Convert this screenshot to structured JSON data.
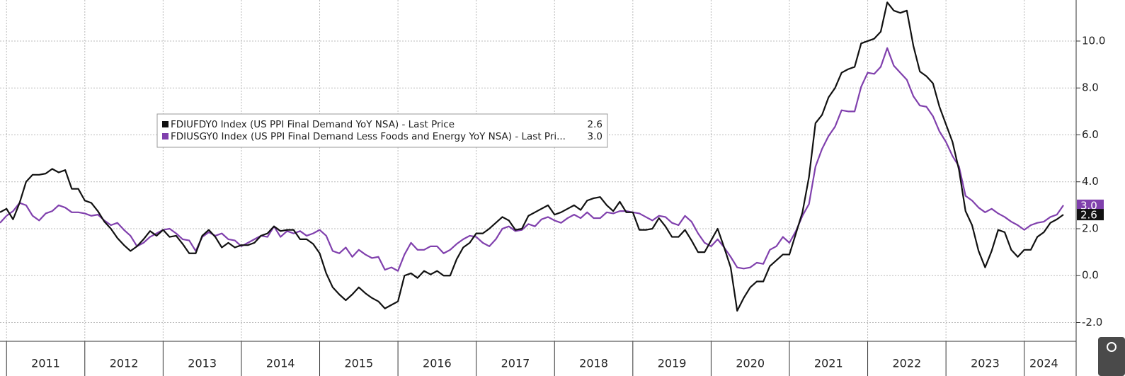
{
  "chart_data": {
    "type": "line",
    "categories": [
      null,
      null,
      null,
      null,
      null,
      null,
      null,
      "2011",
      null,
      null,
      null,
      null,
      null,
      null,
      null,
      null,
      null,
      null,
      null,
      "2012",
      null,
      null,
      null,
      null,
      null,
      null,
      null,
      null,
      null,
      null,
      null,
      "2013",
      null,
      null,
      null,
      null,
      null,
      null,
      null,
      null,
      null,
      null,
      null,
      "2014",
      null,
      null,
      null,
      null,
      null,
      null,
      null,
      null,
      null,
      null,
      null,
      "2015",
      null,
      null,
      null,
      null,
      null,
      null,
      null,
      null,
      null,
      null,
      null,
      "2016",
      null,
      null,
      null,
      null,
      null,
      null,
      null,
      null,
      null,
      null,
      null,
      "2017",
      null,
      null,
      null,
      null,
      null,
      null,
      null,
      null,
      null,
      null,
      null,
      "2018",
      null,
      null,
      null,
      null,
      null,
      null,
      null,
      null,
      null,
      null,
      null,
      "2019",
      null,
      null,
      null,
      null,
      null,
      null,
      null,
      null,
      null,
      null,
      null,
      "2020",
      null,
      null,
      null,
      null,
      null,
      null,
      null,
      null,
      null,
      null,
      null,
      "2021",
      null,
      null,
      null,
      null,
      null,
      null,
      null,
      null,
      null,
      null,
      null,
      "2022",
      null,
      null,
      null,
      null,
      null,
      null,
      null,
      null,
      null,
      null,
      null,
      "2023",
      null,
      null,
      null,
      null,
      null,
      null,
      null,
      null,
      "2024",
      null,
      null,
      null
    ],
    "series": [
      {
        "name": "FDIUFDY0 Index (US PPI Final Demand YoY NSA) - Last Price",
        "color": "#111111",
        "last_label": "2.6",
        "values": [
          2.7,
          2.85,
          2.4,
          3.1,
          4.0,
          4.3,
          4.3,
          4.35,
          4.55,
          4.4,
          4.5,
          3.7,
          3.7,
          3.2,
          3.1,
          2.75,
          2.3,
          2.0,
          1.6,
          1.3,
          1.05,
          1.25,
          1.55,
          1.9,
          1.7,
          1.95,
          1.65,
          1.7,
          1.35,
          0.95,
          0.95,
          1.7,
          1.95,
          1.65,
          1.2,
          1.4,
          1.2,
          1.3,
          1.3,
          1.4,
          1.7,
          1.8,
          2.1,
          1.9,
          1.95,
          1.95,
          1.55,
          1.55,
          1.35,
          0.95,
          0.1,
          -0.5,
          -0.8,
          -1.05,
          -0.8,
          -0.5,
          -0.75,
          -0.95,
          -1.1,
          -1.4,
          -1.25,
          -1.1,
          0.0,
          0.1,
          -0.1,
          0.2,
          0.05,
          0.2,
          0.0,
          0.0,
          0.7,
          1.2,
          1.4,
          1.8,
          1.8,
          2.0,
          2.25,
          2.5,
          2.35,
          1.95,
          2.0,
          2.55,
          2.7,
          2.85,
          3.0,
          2.6,
          2.7,
          2.85,
          3.0,
          2.8,
          3.2,
          3.3,
          3.35,
          3.0,
          2.75,
          3.15,
          2.7,
          2.7,
          1.95,
          1.95,
          2.0,
          2.45,
          2.1,
          1.65,
          1.65,
          1.95,
          1.5,
          1.0,
          1.0,
          1.5,
          2.0,
          1.2,
          0.35,
          -1.5,
          -0.95,
          -0.5,
          -0.25,
          -0.25,
          0.4,
          0.65,
          0.9,
          0.9,
          1.8,
          2.7,
          4.2,
          6.5,
          6.85,
          7.6,
          8.0,
          8.65,
          8.8,
          8.9,
          9.9,
          10.0,
          10.1,
          10.4,
          11.65,
          11.3,
          11.2,
          11.3,
          9.8,
          8.7,
          8.5,
          8.2,
          7.2,
          6.45,
          5.7,
          4.5,
          2.75,
          2.15,
          1.05,
          0.35,
          1.05,
          1.95,
          1.85,
          1.1,
          0.8,
          1.1,
          1.1,
          1.65,
          1.85,
          2.25,
          2.4,
          2.6
        ]
      },
      {
        "name": "FDIUSGY0 Index (US PPI Final Demand Less Foods and Energy YoY NSA) - Last Pri...",
        "color": "#8040ad",
        "last_label": "3.0",
        "values": [
          2.25,
          2.55,
          2.75,
          3.1,
          3.0,
          2.55,
          2.35,
          2.65,
          2.75,
          3.0,
          2.9,
          2.7,
          2.7,
          2.65,
          2.55,
          2.6,
          2.35,
          2.15,
          2.25,
          1.95,
          1.7,
          1.25,
          1.4,
          1.65,
          1.8,
          1.95,
          2.0,
          1.8,
          1.55,
          1.5,
          1.05,
          1.65,
          1.85,
          1.7,
          1.8,
          1.55,
          1.5,
          1.25,
          1.4,
          1.55,
          1.7,
          1.65,
          2.1,
          1.65,
          1.9,
          1.8,
          1.9,
          1.7,
          1.8,
          1.95,
          1.7,
          1.05,
          0.95,
          1.2,
          0.8,
          1.1,
          0.9,
          0.75,
          0.8,
          0.25,
          0.35,
          0.2,
          0.9,
          1.4,
          1.1,
          1.1,
          1.25,
          1.25,
          0.95,
          1.1,
          1.35,
          1.55,
          1.7,
          1.65,
          1.4,
          1.25,
          1.55,
          2.0,
          2.1,
          1.9,
          1.95,
          2.2,
          2.1,
          2.4,
          2.5,
          2.35,
          2.25,
          2.45,
          2.6,
          2.45,
          2.7,
          2.45,
          2.45,
          2.7,
          2.65,
          2.75,
          2.75,
          2.7,
          2.65,
          2.5,
          2.35,
          2.55,
          2.5,
          2.25,
          2.15,
          2.55,
          2.3,
          1.8,
          1.4,
          1.25,
          1.55,
          1.2,
          0.8,
          0.35,
          0.3,
          0.35,
          0.55,
          0.5,
          1.1,
          1.25,
          1.65,
          1.4,
          1.9,
          2.55,
          3.05,
          4.65,
          5.4,
          5.95,
          6.35,
          7.05,
          7.0,
          7.0,
          8.05,
          8.65,
          8.6,
          8.9,
          9.7,
          8.95,
          8.65,
          8.35,
          7.65,
          7.25,
          7.2,
          6.8,
          6.15,
          5.7,
          5.1,
          4.65,
          3.4,
          3.2,
          2.9,
          2.7,
          2.85,
          2.65,
          2.5,
          2.3,
          2.15,
          1.95,
          2.15,
          2.25,
          2.3,
          2.5,
          2.6,
          3.0
        ]
      }
    ],
    "ylim": [
      -2.8,
      11.75
    ],
    "yticks": [
      {
        "value": -2,
        "label": "-2.0"
      },
      {
        "value": 0,
        "label": "0.0"
      },
      {
        "value": 2,
        "label": "2.0"
      },
      {
        "value": 4,
        "label": "4.0"
      },
      {
        "value": 6,
        "label": "6.0"
      },
      {
        "value": 8,
        "label": "8.0"
      },
      {
        "value": 10,
        "label": "10.0"
      }
    ],
    "grid": true,
    "legend": "upper-left"
  }
}
